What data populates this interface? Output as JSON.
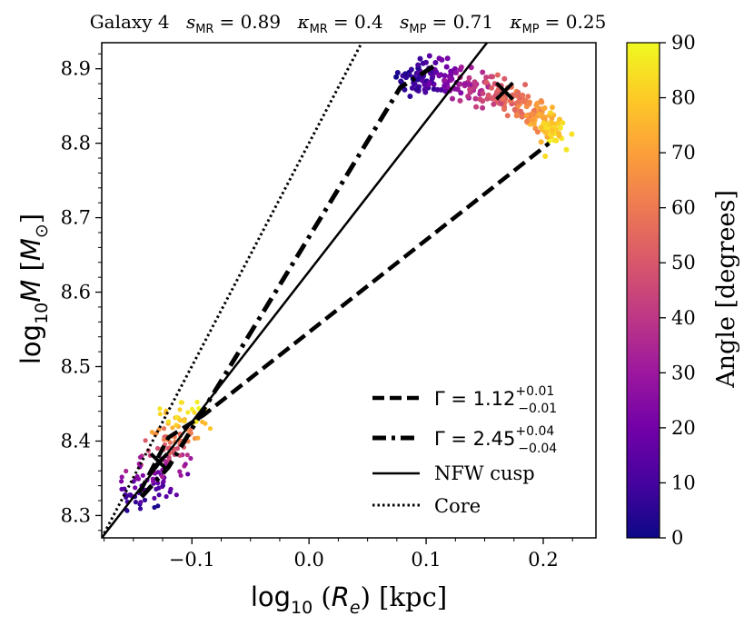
{
  "chart_data": {
    "type": "scatter",
    "title": {
      "galaxy": "Galaxy 4",
      "s_mr_label": "s",
      "s_mr_sub": "MR",
      "s_mr_value": "= 0.89",
      "k_mr_label": "κ",
      "k_mr_sub": "MR",
      "k_mr_value": "= 0.4",
      "s_mp_label": "s",
      "s_mp_sub": "MP",
      "s_mp_value": "= 0.71",
      "k_mp_label": "κ",
      "k_mp_sub": "MP",
      "k_mp_value": "= 0.25"
    },
    "xlabel": {
      "prefix": "log",
      "sub": "10",
      "open": " (",
      "var": "R",
      "var_sub": "e",
      "close": ") [kpc]"
    },
    "ylabel": {
      "prefix": "log",
      "sub": "10",
      "var": "M",
      "open": " [",
      "unit": "M",
      "unit_sub": "⊙",
      "close": "]"
    },
    "xlim": [
      -0.177,
      0.245
    ],
    "ylim": [
      8.27,
      8.935
    ],
    "xticks": [
      {
        "value": -0.1,
        "label": "−0.1"
      },
      {
        "value": 0.0,
        "label": "0.0"
      },
      {
        "value": 0.1,
        "label": "0.1"
      },
      {
        "value": 0.2,
        "label": "0.2"
      }
    ],
    "yticks": [
      {
        "value": 8.3,
        "label": "8.3"
      },
      {
        "value": 8.4,
        "label": "8.4"
      },
      {
        "value": 8.5,
        "label": "8.5"
      },
      {
        "value": 8.6,
        "label": "8.6"
      },
      {
        "value": 8.7,
        "label": "8.7"
      },
      {
        "value": 8.8,
        "label": "8.8"
      },
      {
        "value": 8.9,
        "label": "8.9"
      }
    ],
    "colorbar": {
      "label": "Angle [degrees]",
      "min": 0,
      "max": 90,
      "colormap": "plasma",
      "ticks": [
        "0",
        "10",
        "20",
        "30",
        "40",
        "50",
        "60",
        "70",
        "80",
        "90"
      ],
      "stops": [
        "#0d0887",
        "#46039f",
        "#7201a8",
        "#9c179e",
        "#bd3786",
        "#d8576b",
        "#ed7953",
        "#fb9f3a",
        "#fdca26",
        "#f0f921"
      ]
    },
    "clusters": [
      {
        "name": "small-radius cluster",
        "arc": [
          {
            "x": -0.15,
            "y": 8.31,
            "angle": 4
          },
          {
            "x": -0.142,
            "y": 8.33,
            "angle": 12
          },
          {
            "x": -0.134,
            "y": 8.35,
            "angle": 22
          },
          {
            "x": -0.126,
            "y": 8.37,
            "angle": 35
          },
          {
            "x": -0.118,
            "y": 8.392,
            "angle": 50
          },
          {
            "x": -0.111,
            "y": 8.412,
            "angle": 66
          },
          {
            "x": -0.107,
            "y": 8.43,
            "angle": 80
          },
          {
            "x": -0.106,
            "y": 8.444,
            "angle": 88
          }
        ],
        "spread_x": 0.011,
        "spread_y": 0.006,
        "marker": {
          "x": -0.128,
          "y": 8.372
        }
      },
      {
        "name": "large-radius cluster",
        "arc": [
          {
            "x": 0.083,
            "y": 8.88,
            "angle": 3
          },
          {
            "x": 0.1,
            "y": 8.888,
            "angle": 12
          },
          {
            "x": 0.12,
            "y": 8.886,
            "angle": 24
          },
          {
            "x": 0.14,
            "y": 8.879,
            "angle": 37
          },
          {
            "x": 0.16,
            "y": 8.868,
            "angle": 49
          },
          {
            "x": 0.178,
            "y": 8.856,
            "angle": 59
          },
          {
            "x": 0.194,
            "y": 8.84,
            "angle": 69
          },
          {
            "x": 0.205,
            "y": 8.824,
            "angle": 78
          },
          {
            "x": 0.212,
            "y": 8.81,
            "angle": 86
          }
        ],
        "spread_x": 0.005,
        "spread_y": 0.012,
        "marker": {
          "x": 0.167,
          "y": 8.87
        }
      }
    ],
    "series": [
      {
        "name": "Gamma 1.12",
        "style": "dashed",
        "legend_prefix": "Γ = 1.12",
        "legend_sup": "+0.01",
        "legend_sub": "−0.01",
        "points": [
          [
            -0.145,
            8.33
          ],
          [
            -0.12,
            8.405
          ],
          [
            -0.09,
            8.435
          ],
          [
            0.205,
            8.8
          ]
        ]
      },
      {
        "name": "Gamma 2.45",
        "style": "dashdot",
        "legend_prefix": "Γ = 2.45",
        "legend_sup": "+0.04",
        "legend_sub": "−0.04",
        "points": [
          [
            -0.143,
            8.325
          ],
          [
            -0.12,
            8.365
          ],
          [
            0.078,
            8.875
          ],
          [
            0.108,
            8.905
          ]
        ]
      },
      {
        "name": "NFW cusp",
        "style": "solid",
        "legend_text": "NFW cusp",
        "points": [
          [
            -0.177,
            8.27
          ],
          [
            0.152,
            8.935
          ]
        ]
      },
      {
        "name": "Core",
        "style": "dotted",
        "legend_text": "Core",
        "points": [
          [
            -0.177,
            8.27
          ],
          [
            0.045,
            8.935
          ]
        ]
      }
    ]
  }
}
